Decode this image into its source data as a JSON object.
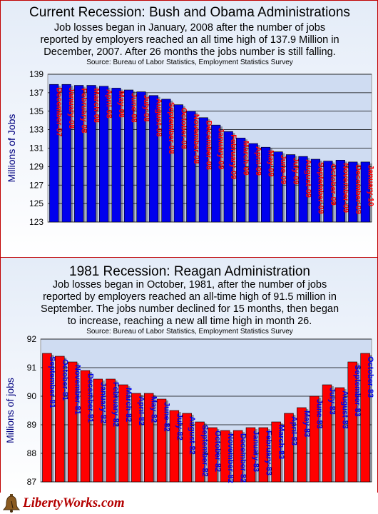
{
  "top": {
    "title": "Current Recession: Bush and Obama Administrations",
    "subtitle_lines": [
      "Job losses began in January, 2008 after the number of jobs",
      "reported by employers reached an all time high of 137.9 Million in",
      "December, 2007.  After 26 months the jobs number is still falling."
    ],
    "source": "Source: Bureau of Labor Statistics, Employment Statistics Survey"
  },
  "bottom": {
    "title": "1981 Recession: Reagan Administration",
    "subtitle_lines": [
      "Job losses began in October, 1981, after the number of jobs",
      "reported by employers reached an all-time high of 91.5 million in",
      "September. The jobs number declined for 15 months, then began",
      "to increase, reaching a new all time high in month 26."
    ],
    "source": "Source: Bureau of Labor Statistics, Employment Statistics Survey"
  },
  "logo": {
    "text": "LibertyWorks.com",
    "icon": "liberty-bell-icon"
  },
  "colors": {
    "bar_top": "#0000ee",
    "bar_bottom": "#ff0000",
    "label_top": "#ff0000",
    "label_bottom": "#0000ee",
    "border": "#c00000"
  },
  "chart_data": [
    {
      "type": "bar",
      "ylabel": "Millions of Jobs",
      "ylim": [
        123,
        139
      ],
      "yticks": [
        123,
        125,
        127,
        129,
        131,
        133,
        135,
        137,
        139
      ],
      "grid": true,
      "categories": [
        "December-07",
        "January-08",
        "February-08",
        "March-08",
        "April-08",
        "May-08",
        "June-08",
        "July-08",
        "August-08",
        "September-08",
        "October-08",
        "November-08",
        "December-08",
        "January-09",
        "February-09",
        "March-09",
        "April-09",
        "May-09",
        "June-09",
        "July-09",
        "August-09",
        "September-09",
        "October-09",
        "November-09",
        "December-09",
        "January-10"
      ],
      "values": [
        137.9,
        137.9,
        137.8,
        137.8,
        137.7,
        137.5,
        137.3,
        137.1,
        136.7,
        136.3,
        135.7,
        135.0,
        134.3,
        133.5,
        132.8,
        132.1,
        131.5,
        131.1,
        130.6,
        130.3,
        130.1,
        129.8,
        129.6,
        129.7,
        129.5,
        129.5
      ]
    },
    {
      "type": "bar",
      "ylabel": "Millions of jobs",
      "ylim": [
        87,
        92
      ],
      "yticks": [
        87,
        88,
        89,
        90,
        91,
        92
      ],
      "grid": true,
      "categories": [
        "September-81",
        "October-81",
        "November-81",
        "December-81",
        "January-82",
        "February-82",
        "March-82",
        "April-82",
        "May-82",
        "June-82",
        "July-82",
        "August-82",
        "September-82",
        "October-82",
        "November-82",
        "December-82",
        "January-83",
        "February-83",
        "March-83",
        "April-83",
        "May-83",
        "June-83",
        "July-83",
        "August-83",
        "September-83",
        "October-83"
      ],
      "values": [
        91.5,
        91.4,
        91.2,
        90.9,
        90.6,
        90.6,
        90.4,
        90.1,
        90.1,
        89.9,
        89.5,
        89.4,
        89.1,
        88.9,
        88.8,
        88.8,
        88.9,
        88.9,
        89.1,
        89.4,
        89.6,
        90.0,
        90.4,
        90.3,
        91.2,
        91.5
      ]
    }
  ]
}
